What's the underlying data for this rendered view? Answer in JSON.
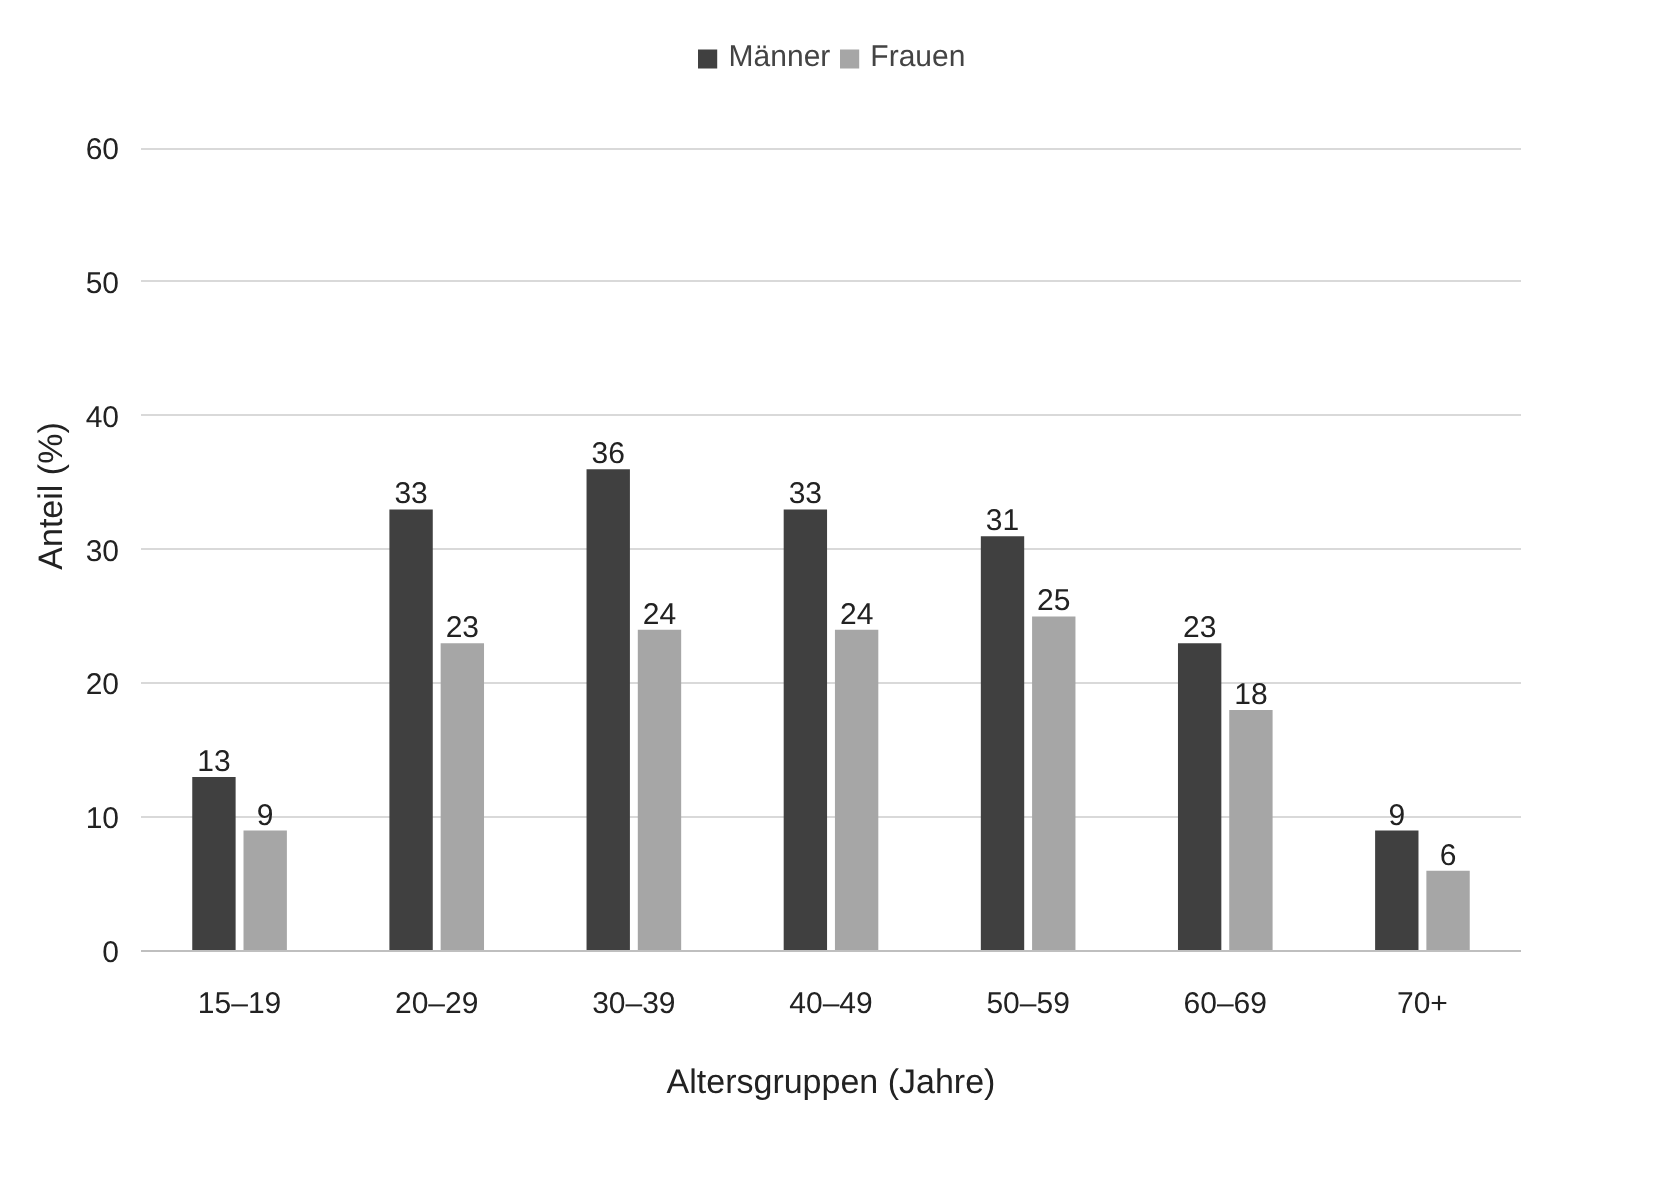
{
  "chart_data": {
    "type": "bar",
    "xlabel": "Altersgruppen (Jahre)",
    "ylabel": "Anteil (%)",
    "categories": [
      "15–19",
      "20–29",
      "30–39",
      "40–49",
      "50–59",
      "60–69",
      "70+"
    ],
    "series": [
      {
        "name": "Männer",
        "color": "#404040",
        "values": [
          13,
          33,
          36,
          33,
          31,
          23,
          9
        ]
      },
      {
        "name": "Frauen",
        "color": "#a6a6a6",
        "values": [
          9,
          23,
          24,
          24,
          25,
          18,
          6
        ]
      }
    ],
    "ylim": [
      0,
      68
    ],
    "yticks": [
      0,
      10,
      20,
      30,
      40,
      50,
      60
    ],
    "grid": "y",
    "legend": "top",
    "data_labels": true
  }
}
